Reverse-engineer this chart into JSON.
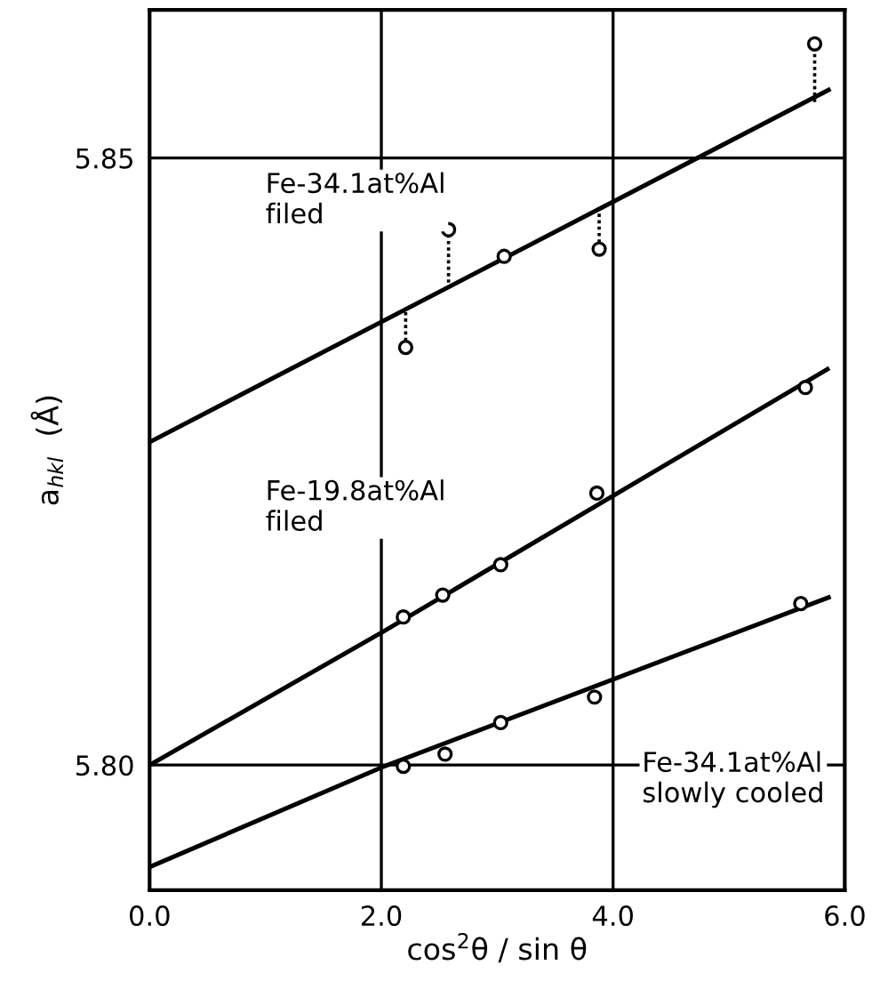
{
  "chart_data": {
    "type": "scatter",
    "xlabel": "cos$^{2}$θ / sin θ",
    "ylabel": "a$_{hkl}$  (Å)",
    "xlim": [
      0,
      6
    ],
    "ylim": [
      5.7897,
      5.8622
    ],
    "xticks": [
      {
        "value": 0,
        "label": "0.0"
      },
      {
        "value": 2,
        "label": "2.0"
      },
      {
        "value": 4,
        "label": "4.0"
      },
      {
        "value": 6,
        "label": "6.0"
      }
    ],
    "yticks": [
      {
        "value": 5.8,
        "label": "5.80"
      },
      {
        "value": 5.85,
        "label": "5.85"
      }
    ],
    "grid": true,
    "series": [
      {
        "name": "Fe-34.1at%Al\nfiled",
        "marker": "circle",
        "color": "#000000",
        "x": [
          2.21,
          2.58,
          3.06,
          3.88,
          5.74
        ],
        "values": [
          5.8344,
          5.8441,
          5.8419,
          5.8425,
          5.8594
        ],
        "errors": [
          [
            5.8344,
            5.8374
          ],
          [
            5.8392,
            5.8441
          ],
          null,
          [
            5.8425,
            5.8455
          ],
          [
            5.8546,
            5.8594
          ]
        ]
      },
      {
        "type": "line",
        "color": "#000000",
        "x": [
          0,
          5.86
        ],
        "values": [
          5.8266,
          5.8556
        ]
      },
      {
        "name": "Fe-19.8at%Al\nfiled",
        "marker": "circle",
        "color": "#000000",
        "x": [
          2.19,
          2.53,
          3.03,
          3.86,
          5.66
        ],
        "values": [
          5.8122,
          5.814,
          5.8165,
          5.8224,
          5.8311
        ]
      },
      {
        "type": "line",
        "color": "#000000",
        "x": [
          0,
          2.0,
          5.85
        ],
        "values": [
          5.8,
          5.8109,
          5.8326
        ]
      },
      {
        "name": "Fe-34.1at%Al\nslowly cooled",
        "marker": "circle",
        "color": "#000000",
        "x": [
          2.19,
          2.55,
          3.03,
          3.84,
          5.62
        ],
        "values": [
          5.7999,
          5.8009,
          5.8035,
          5.8056,
          5.8133
        ]
      },
      {
        "type": "line",
        "color": "#000000",
        "x": [
          0,
          2.0,
          5.86
        ],
        "values": [
          5.7916,
          5.7998,
          5.8138
        ]
      }
    ]
  }
}
